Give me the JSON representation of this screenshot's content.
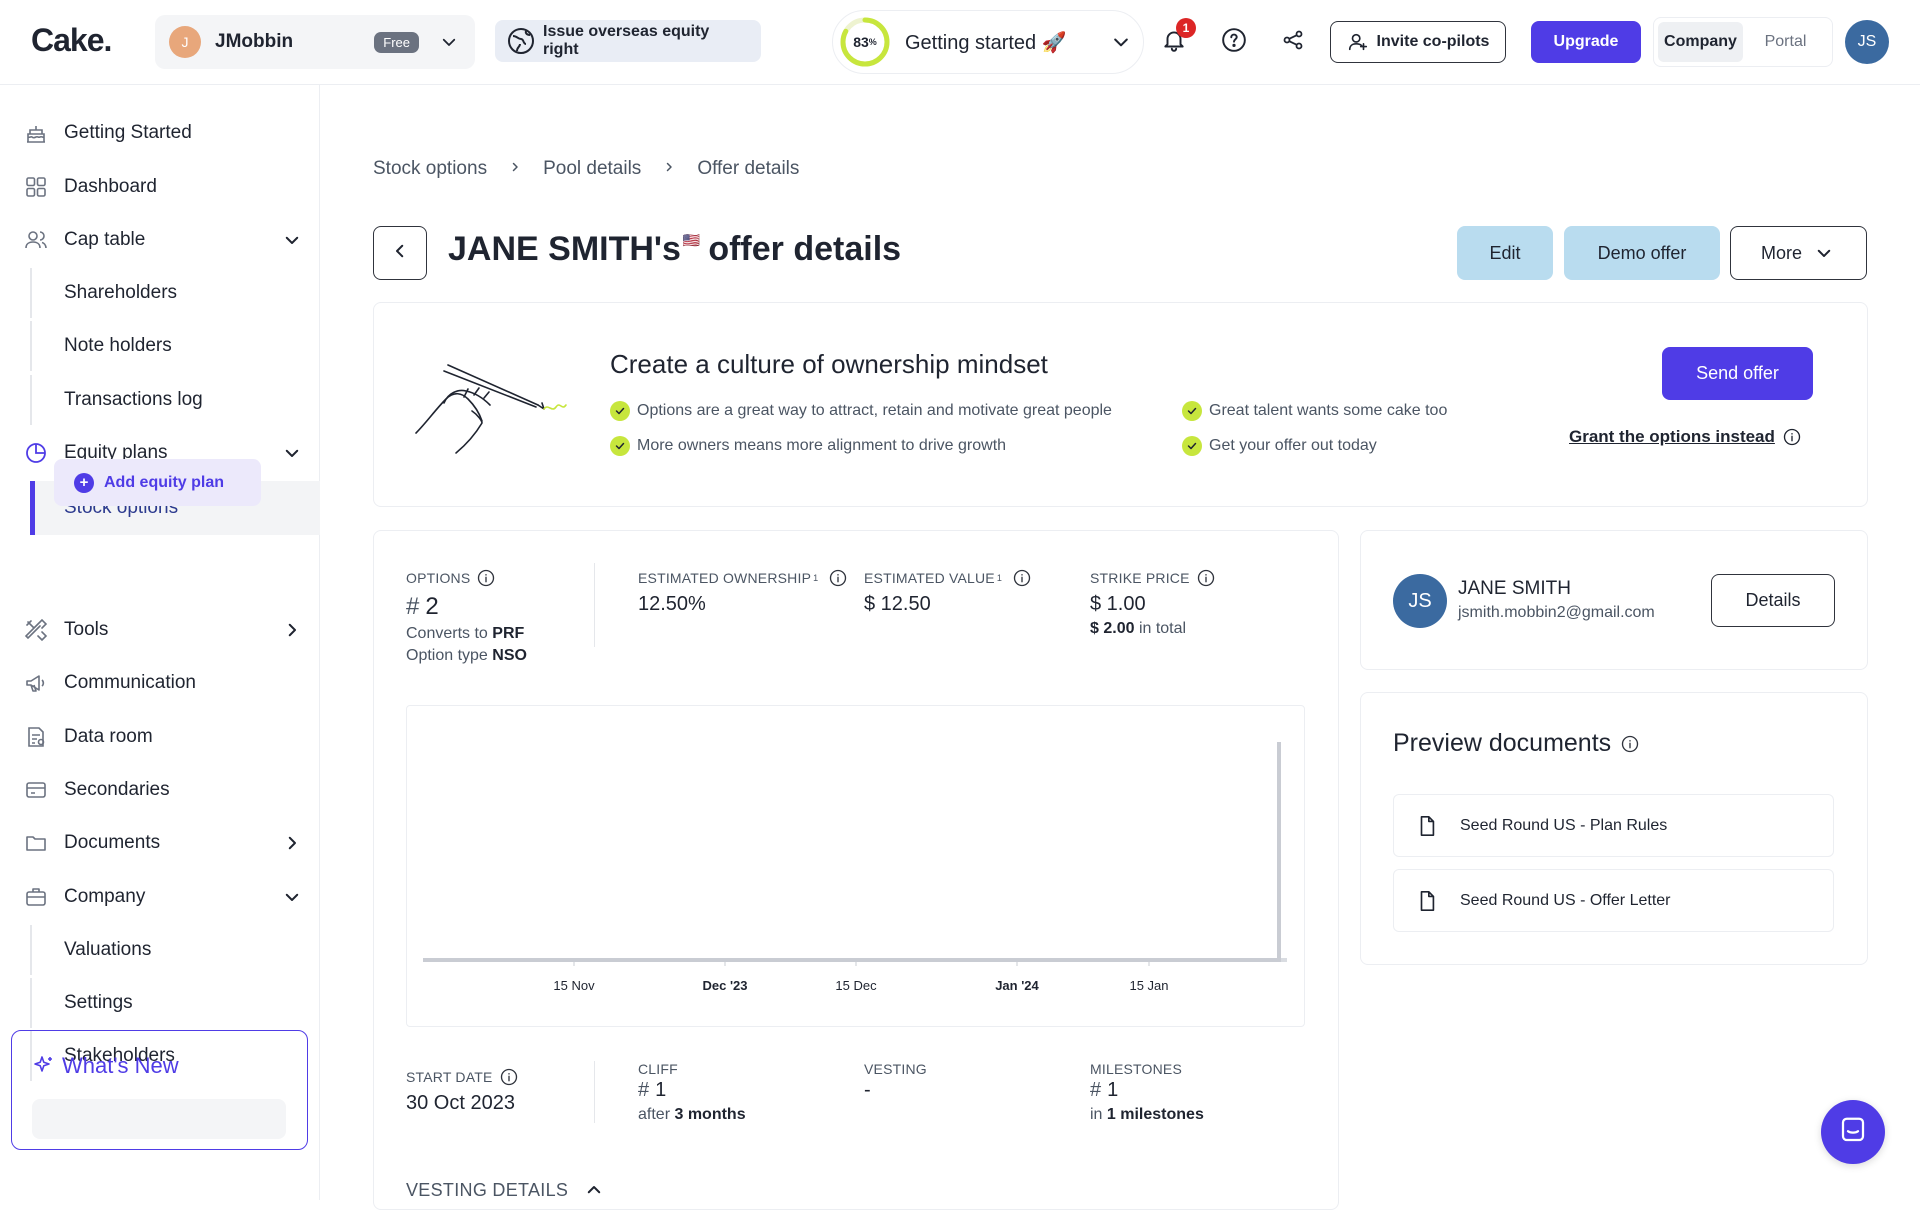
{
  "app": {
    "logo": "Cake."
  },
  "org": {
    "initial": "J",
    "name": "JMobbin",
    "plan_badge": "Free"
  },
  "topbar": {
    "issue_label": "Issue overseas equity right",
    "progress_percent_label": "83",
    "progress_percent_suffix": "%",
    "progress_fraction": 0.83,
    "getting_started_label": "Getting started 🚀",
    "notification_count": "1",
    "invite_label": "Invite co-pilots",
    "upgrade_label": "Upgrade",
    "mode_options": [
      "Company",
      "Portal"
    ],
    "user_initials": "JS",
    "accent_color": "#4f3ce6"
  },
  "sidebar": {
    "items": [
      {
        "label": "Getting Started",
        "icon": "cake-icon"
      },
      {
        "label": "Dashboard",
        "icon": "grid-icon"
      },
      {
        "label": "Cap table",
        "icon": "users-icon"
      },
      {
        "label": "Shareholders"
      },
      {
        "label": "Note holders"
      },
      {
        "label": "Transactions log"
      },
      {
        "label": "Equity plans",
        "icon": "pie-chart-icon"
      },
      {
        "label": "Stock options"
      },
      {
        "label": "Tools",
        "icon": "tools-icon"
      },
      {
        "label": "Communication",
        "icon": "megaphone-icon"
      },
      {
        "label": "Data room",
        "icon": "data-room-icon"
      },
      {
        "label": "Secondaries",
        "icon": "secondaries-icon"
      },
      {
        "label": "Documents",
        "icon": "folder-icon"
      },
      {
        "label": "Company",
        "icon": "briefcase-icon"
      },
      {
        "label": "Valuations"
      },
      {
        "label": "Settings"
      },
      {
        "label": "Stakeholders"
      }
    ],
    "add_plan_label": "Add equity plan",
    "whats_new_label": "What's New"
  },
  "breadcrumb": [
    "Stock options",
    "Pool details",
    "Offer details"
  ],
  "page": {
    "title_name": "JANE SMITH's",
    "title_flag": "🇺🇸",
    "title_rest": "offer details",
    "edit_label": "Edit",
    "demo_label": "Demo offer",
    "more_label": "More"
  },
  "banner": {
    "title": "Create a culture of ownership mindset",
    "bullets": [
      "Options are a great way to attract, retain and motivate great people",
      "More owners means more alignment to drive growth",
      "Great talent wants some cake too",
      "Get your offer out today"
    ],
    "send_label": "Send offer",
    "grant_label": "Grant the options instead"
  },
  "offer": {
    "options_key": "OPTIONS",
    "options_hash": "#",
    "options_value": "2",
    "converts_prefix": "Converts to",
    "converts_value": "PRF",
    "option_type_prefix": "Option type",
    "option_type_value": "NSO",
    "ownership_key": "ESTIMATED OWNERSHIP",
    "ownership_sup": "1",
    "ownership_value": "12.50%",
    "value_key": "ESTIMATED VALUE",
    "value_sup": "1",
    "value_value": "$ 12.50",
    "strike_key": "STRIKE PRICE",
    "strike_value": "$ 1.00",
    "strike_total_value": "$ 2.00",
    "strike_total_suffix": "in total",
    "start_key": "START DATE",
    "start_value": "30 Oct 2023",
    "cliff_key": "CLIFF",
    "cliff_hash": "#",
    "cliff_value": "1",
    "cliff_after_prefix": "after",
    "cliff_after_value": "3 months",
    "vesting_key": "VESTING",
    "vesting_value": "-",
    "milestones_key": "MILESTONES",
    "milestones_hash": "#",
    "milestones_value": "1",
    "milestones_in_prefix": "in",
    "milestones_in_value": "1 milestones",
    "vesting_details_label": "VESTING DETAILS"
  },
  "chart_data": {
    "type": "line",
    "x_ticks": [
      "15 Nov",
      "Dec '23",
      "15 Dec",
      "Jan '24",
      "15 Jan"
    ],
    "bold_ticks": [
      "Dec '23",
      "Jan '24"
    ],
    "series": [
      {
        "values": [
          0,
          0,
          0,
          0,
          0,
          2
        ]
      }
    ],
    "grid": false
  },
  "person": {
    "initials": "JS",
    "name": "JANE SMITH",
    "email": "jsmith.mobbin2@gmail.com",
    "details_label": "Details"
  },
  "documents": {
    "title": "Preview documents",
    "items": [
      "Seed Round US - Plan Rules",
      "Seed Round US - Offer Letter"
    ]
  }
}
